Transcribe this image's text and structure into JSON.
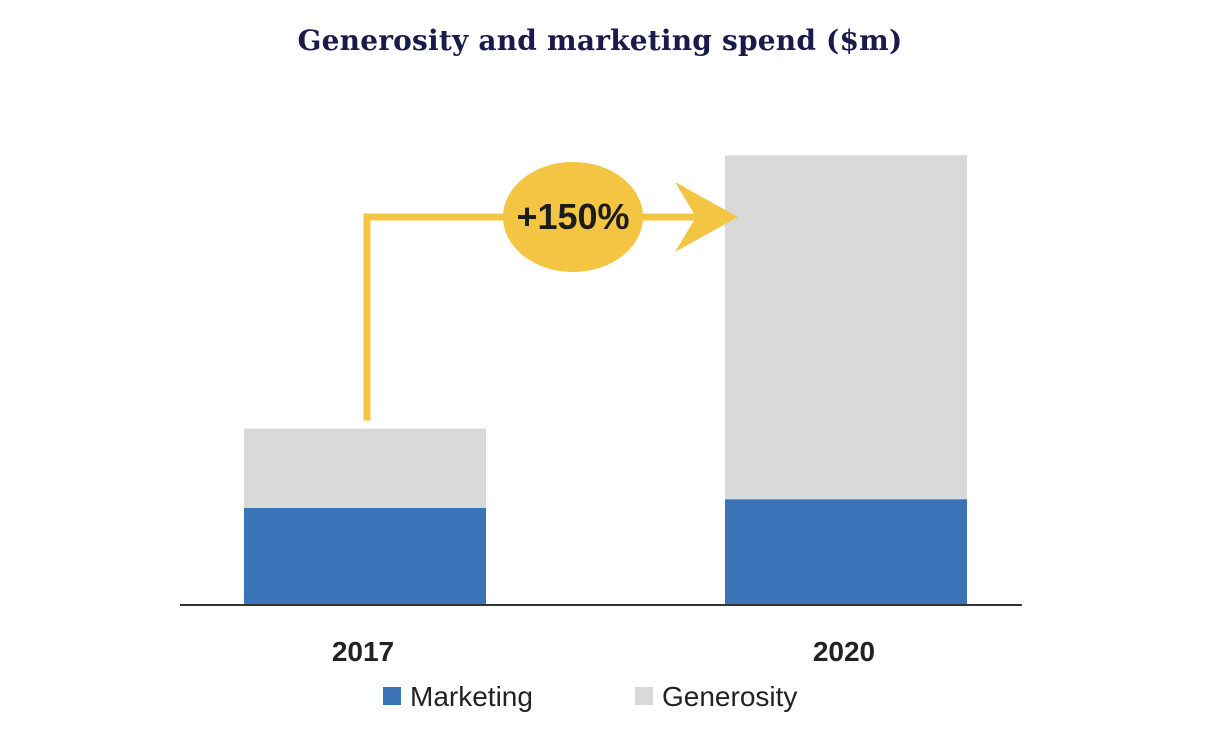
{
  "chart_data": {
    "type": "bar",
    "stacked": true,
    "title": "Generosity and marketing spend ($m)",
    "categories": [
      "2017",
      "2020"
    ],
    "series": [
      {
        "name": "Marketing",
        "values": [
          11,
          12
        ],
        "color": "#3a73b7"
      },
      {
        "name": "Generosity",
        "values": [
          9,
          39
        ],
        "color": "#d9d9d9"
      }
    ],
    "totals": [
      20,
      51
    ],
    "ylim": [
      0,
      55
    ],
    "grid": false,
    "legend": "bottom",
    "annotation": {
      "text": "+150%",
      "color": "#f4c542"
    }
  }
}
